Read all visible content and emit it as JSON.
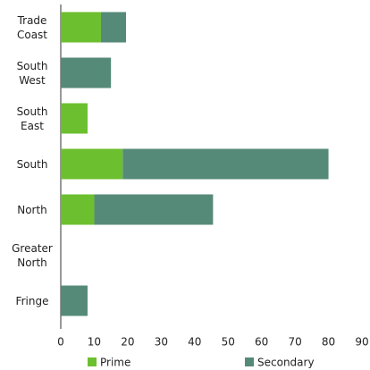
{
  "chart_data": {
    "type": "stacked-bar-horizontal",
    "categories": [
      "Trade Coast",
      "South West",
      "South East",
      "South",
      "North",
      "Greater North",
      "Fringe"
    ],
    "series": [
      {
        "name": "Prime",
        "color": "#6cbf2e",
        "values": [
          12,
          0,
          8,
          18.5,
          10,
          0,
          0
        ]
      },
      {
        "name": "Secondary",
        "color": "#568a78",
        "values": [
          7.5,
          15,
          0,
          61.5,
          35.5,
          0,
          8
        ]
      }
    ],
    "xlim": [
      0,
      90
    ],
    "xticks": [
      0,
      10,
      20,
      30,
      40,
      50,
      60,
      70,
      80,
      90
    ]
  }
}
